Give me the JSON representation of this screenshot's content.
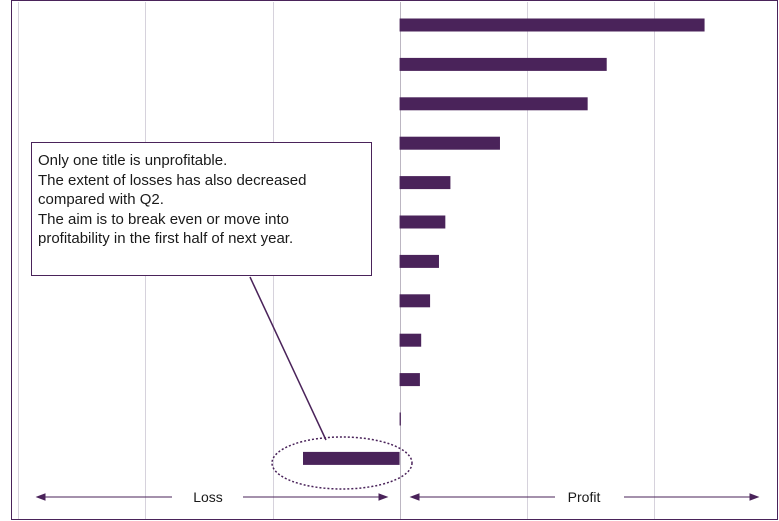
{
  "chart_data": {
    "type": "bar",
    "orientation": "horizontal",
    "categories": [
      "",
      "",
      "",
      "",
      "",
      "",
      "",
      "",
      "",
      "",
      "",
      ""
    ],
    "values": [
      24,
      16.3,
      14.8,
      7.9,
      4,
      3.6,
      3.1,
      2.4,
      1.7,
      1.6,
      0.1,
      -7.6
    ],
    "xlim": [
      -30.5,
      29.7
    ],
    "grid": true,
    "bar_color": "#4a235a",
    "axis_color": "#4a235a",
    "highlighted_index": 11
  },
  "annotation": {
    "lines": [
      "Only one title is unprofitable.",
      "The extent of losses has also decreased",
      "compared with Q2.",
      "The aim is to break even or move into",
      "profitability in the first half of next year."
    ]
  },
  "bottom_labels": {
    "loss": "Loss",
    "profit": "Profit"
  }
}
